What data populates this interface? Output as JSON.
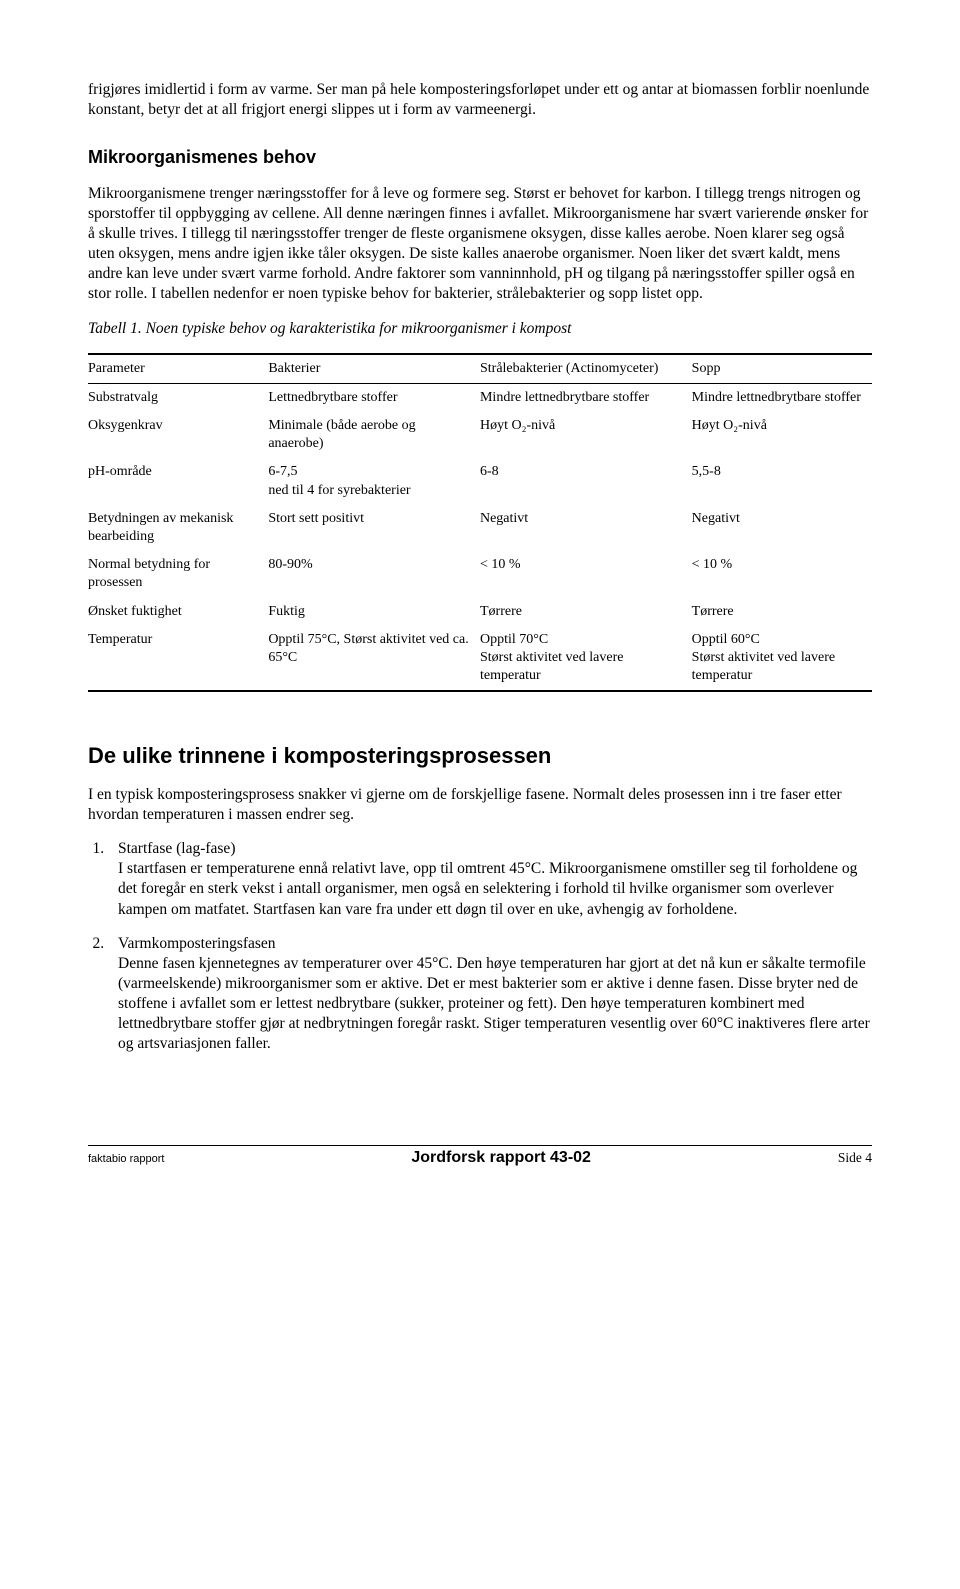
{
  "intro_para": "frigjøres imidlertid i form av varme. Ser man på hele komposteringsforløpet under ett og antar at biomassen forblir noenlunde konstant, betyr det at all frigjort energi slippes ut i form av varmeenergi.",
  "h_mikro": "Mikroorganismenes behov",
  "mikro_para": "Mikroorganismene trenger næringsstoffer for å leve og formere seg. Størst er behovet for karbon. I tillegg trengs nitrogen og sporstoffer til oppbygging av cellene. All denne næringen finnes i avfallet. Mikroorganismene har svært varierende ønsker for å skulle trives. I tillegg til næringsstoffer trenger de fleste organismene oksygen, disse kalles aerobe. Noen klarer seg også uten oksygen, mens andre igjen ikke tåler oksygen. De siste kalles anaerobe organismer. Noen liker det svært kaldt, mens andre kan leve under svært varme forhold. Andre faktorer som vanninnhold, pH og tilgang på næringsstoffer spiller også en stor rolle. I tabellen nedenfor er noen typiske behov for bakterier, strålebakterier og sopp listet opp.",
  "table_caption": "Tabell 1. Noen typiske behov og karakteristika for mikroorganismer i kompost",
  "table": {
    "header": [
      "Parameter",
      "Bakterier",
      "Strålebakterier (Actinomyceter)",
      "Sopp"
    ],
    "rows": [
      [
        "Substratvalg",
        "Lettnedbrytbare stoffer",
        "Mindre lettnedbrytbare stoffer",
        "Mindre lettnedbrytbare stoffer"
      ],
      [
        "Oksygenkrav",
        "Minimale (både aerobe og anaerobe)",
        "Høyt O₂-nivå",
        "Høyt O₂-nivå"
      ],
      [
        "pH-område",
        "6-7,5\nned til 4 for syrebakterier",
        "6-8",
        "5,5-8"
      ],
      [
        "Betydningen av mekanisk bearbeiding",
        "Stort sett positivt",
        "Negativt",
        "Negativt"
      ],
      [
        "Normal betydning for prosessen",
        "80-90%",
        "< 10 %",
        "< 10 %"
      ],
      [
        "Ønsket fuktighet",
        "Fuktig",
        "Tørrere",
        "Tørrere"
      ],
      [
        "Temperatur",
        "Opptil 75°C, Størst aktivitet ved ca. 65°C",
        "Opptil 70°C\nStørst aktivitet ved lavere temperatur",
        "Opptil 60°C\nStørst aktivitet ved lavere temperatur"
      ]
    ]
  },
  "h_trinn": "De ulike trinnene i komposteringsprosessen",
  "trinn_intro": "I en typisk komposteringsprosess snakker vi gjerne om de forskjellige fasene. Normalt deles prosessen inn i tre faser etter hvordan temperaturen i massen endrer seg.",
  "li1_title": "Startfase (lag-fase)",
  "li1_body": "I startfasen er temperaturene ennå relativt lave, opp til omtrent 45°C. Mikroorganismene omstiller seg til forholdene og det foregår en sterk vekst i antall organismer, men også en selektering i forhold til hvilke organismer som overlever kampen om matfatet. Startfasen kan vare fra under ett døgn til over en uke, avhengig av forholdene.",
  "li2_title": "Varmkomposteringsfasen",
  "li2_body": "Denne fasen kjennetegnes av temperaturer over 45°C. Den høye temperaturen har gjort at det nå kun er såkalte termofile (varmeelskende) mikroorganismer som er aktive. Det er mest bakterier som er aktive i denne fasen. Disse bryter ned de stoffene i avfallet som er lettest nedbrytbare (sukker, proteiner og fett). Den høye temperaturen kombinert med lettnedbrytbare stoffer gjør at nedbrytningen foregår raskt. Stiger temperaturen vesentlig over 60°C inaktiveres flere arter og artsvariasjonen faller.",
  "footer": {
    "left": "faktabio rapport",
    "center": "Jordforsk rapport 43-02",
    "right": "Side 4"
  }
}
